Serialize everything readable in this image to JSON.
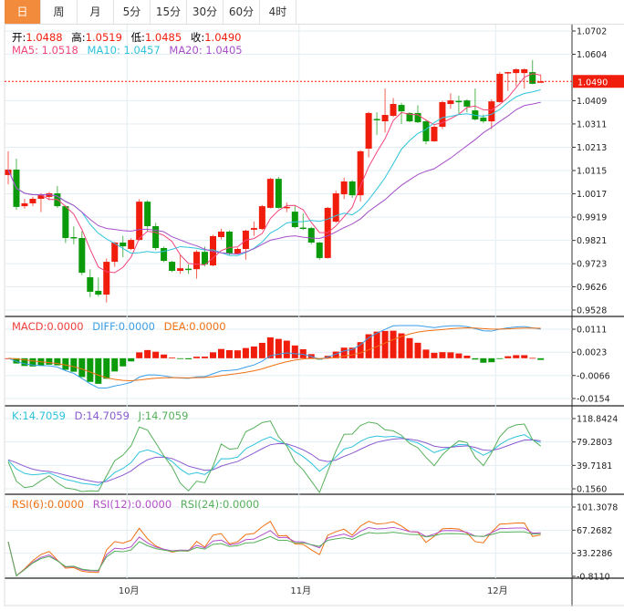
{
  "tabs": [
    "日",
    "周",
    "月",
    "5分",
    "15分",
    "30分",
    "60分",
    "4时"
  ],
  "active_tab": 0,
  "ohlc_legend": {
    "open_label": "开:",
    "open": "1.0488",
    "high_label": "高:",
    "high": "1.0519",
    "low_label": "低:",
    "low": "1.0485",
    "close_label": "收:",
    "close": "1.0490"
  },
  "ma_legend": {
    "ma5": "MA5: 1.0518",
    "ma10": "MA10: 1.0457",
    "ma20": "MA20: 1.0405"
  },
  "macd_legend": {
    "macd": "MACD:0.0000",
    "diff": "DIFF:0.0000",
    "dea": "DEA:0.0000"
  },
  "kdj_legend": {
    "k": "K:14.7059",
    "d": "D:14.7059",
    "j": "J:14.7059"
  },
  "rsi_legend": {
    "rsi6": "RSI(6):0.0000",
    "rsi12": "RSI(12):0.0000",
    "rsi24": "RSI(24):0.0000"
  },
  "last_price_badge": "1.0490",
  "colors": {
    "up": "#f01c0c",
    "down": "#0a9a0a",
    "ma5": "#f2457a",
    "ma10": "#2fc3dc",
    "ma20": "#a64fc9",
    "diff": "#3a9ee8",
    "dea": "#f07013",
    "rsi6": "#f07013",
    "rsi12": "#b44fc9",
    "rsi24": "#55b05a",
    "k": "#2fc3dc",
    "d": "#8a5bd0",
    "j": "#55b05a"
  },
  "chart_data": {
    "type": "candlestick",
    "price_axis": {
      "ticks": [
        "1.0702",
        "1.0604",
        "1.0409",
        "1.0311",
        "1.0213",
        "1.0115",
        "1.0017",
        "0.9919",
        "0.9821",
        "0.9723",
        "0.9626",
        "0.9528"
      ],
      "range": [
        0.9528,
        1.0702
      ]
    },
    "macd_axis": {
      "ticks": [
        "0.0111",
        "0.0023",
        "-0.0066",
        "-0.0154"
      ],
      "range": [
        -0.0154,
        0.0111
      ]
    },
    "kdj_axis": {
      "ticks": [
        "118.8424",
        "79.2803",
        "39.7181",
        "0.1560"
      ],
      "range": [
        0.156,
        118.8424
      ]
    },
    "rsi_axis": {
      "ticks": [
        "101.3078",
        "67.2682",
        "33.2286",
        "-0.8110"
      ],
      "range": [
        -0.811,
        101.3078
      ]
    },
    "x_labels": [
      {
        "label": "10月",
        "index": 15
      },
      {
        "label": "11月",
        "index": 36
      },
      {
        "label": "12月",
        "index": 60
      }
    ],
    "candles": [
      [
        1.0096,
        1.0196,
        1.0057,
        1.0119
      ],
      [
        1.0119,
        1.0165,
        0.995,
        0.9962
      ],
      [
        0.9965,
        0.9996,
        0.9955,
        0.9977
      ],
      [
        0.9977,
        1.0005,
        0.9965,
        0.9996
      ],
      [
        0.9996,
        1.002,
        0.994,
        1.0011
      ],
      [
        1.0004,
        1.0025,
        0.999,
        1.0019
      ],
      [
        1.0019,
        1.005,
        0.9958,
        0.9965
      ],
      [
        0.9965,
        0.9968,
        0.981,
        0.9831
      ],
      [
        0.9835,
        0.988,
        0.9805,
        0.9833
      ],
      [
        0.9831,
        0.986,
        0.9675,
        0.9685
      ],
      [
        0.9666,
        0.97,
        0.9582,
        0.9605
      ],
      [
        0.9609,
        0.9665,
        0.9585,
        0.9593
      ],
      [
        0.9593,
        0.9745,
        0.956,
        0.9731
      ],
      [
        0.9731,
        0.9815,
        0.971,
        0.9812
      ],
      [
        0.9812,
        0.984,
        0.975,
        0.9796
      ],
      [
        0.9785,
        0.983,
        0.978,
        0.9823
      ],
      [
        0.9823,
        0.9995,
        0.982,
        0.9984
      ],
      [
        0.9984,
        0.999,
        0.986,
        0.9881
      ],
      [
        0.9881,
        0.9895,
        0.978,
        0.9789
      ],
      [
        0.9789,
        0.9795,
        0.973,
        0.9735
      ],
      [
        0.9731,
        0.9735,
        0.9688,
        0.9693
      ],
      [
        0.9693,
        0.976,
        0.968,
        0.9704
      ],
      [
        0.9702,
        0.972,
        0.968,
        0.97
      ],
      [
        0.97,
        0.978,
        0.966,
        0.9773
      ],
      [
        0.9773,
        0.9795,
        0.9712,
        0.972
      ],
      [
        0.9716,
        0.9845,
        0.9712,
        0.9839
      ],
      [
        0.9835,
        0.987,
        0.9825,
        0.9858
      ],
      [
        0.9858,
        0.9863,
        0.976,
        0.9766
      ],
      [
        0.9766,
        0.979,
        0.9763,
        0.9785
      ],
      [
        0.9785,
        0.9866,
        0.974,
        0.9862
      ],
      [
        0.9866,
        0.99,
        0.984,
        0.9873
      ],
      [
        0.9869,
        0.997,
        0.9865,
        0.9965
      ],
      [
        0.9958,
        1.0085,
        0.9955,
        1.008
      ],
      [
        1.008,
        1.0088,
        0.9955,
        0.9958
      ],
      [
        0.996,
        0.998,
        0.994,
        0.9962
      ],
      [
        0.9942,
        0.9965,
        0.9872,
        0.9877
      ],
      [
        0.9875,
        0.9935,
        0.9865,
        0.9873
      ],
      [
        0.9873,
        0.9878,
        0.9805,
        0.9812
      ],
      [
        0.9812,
        0.9815,
        0.974,
        0.9747
      ],
      [
        0.9747,
        0.9962,
        0.9745,
        0.9958
      ],
      [
        0.99,
        1.003,
        0.9895,
        1.0019
      ],
      [
        1.0015,
        1.0085,
        0.9995,
        1.0069
      ],
      [
        1.0069,
        1.0075,
        1.0,
        1.0011
      ],
      [
        1.0011,
        1.02,
        0.9985,
        1.0196
      ],
      [
        1.0207,
        1.0362,
        1.017,
        1.0357
      ],
      [
        1.0332,
        1.036,
        1.0265,
        1.033
      ],
      [
        1.0322,
        1.046,
        1.0275,
        1.0349
      ],
      [
        1.0345,
        1.042,
        1.034,
        1.0395
      ],
      [
        1.0391,
        1.04,
        1.031,
        1.0364
      ],
      [
        1.0357,
        1.036,
        1.0318,
        1.0322
      ],
      [
        1.0357,
        1.039,
        1.0315,
        1.0318
      ],
      [
        1.0322,
        1.033,
        1.0225,
        1.0238
      ],
      [
        1.0238,
        1.0305,
        1.0236,
        1.0299
      ],
      [
        1.0299,
        1.0408,
        1.029,
        1.0403
      ],
      [
        1.0395,
        1.044,
        1.0375,
        1.041
      ],
      [
        1.0408,
        1.043,
        1.0355,
        1.0406
      ],
      [
        1.041,
        1.0415,
        1.036,
        1.0384
      ],
      [
        1.0368,
        1.046,
        1.0325,
        1.033
      ],
      [
        1.0338,
        1.035,
        1.0315,
        1.0322
      ],
      [
        1.0322,
        1.0415,
        1.029,
        1.0406
      ],
      [
        1.0403,
        1.053,
        1.04,
        1.0522
      ],
      [
        1.0525,
        1.053,
        1.045,
        1.0529
      ],
      [
        1.0525,
        1.0545,
        1.047,
        1.0541
      ],
      [
        1.0525,
        1.0545,
        1.046,
        1.0541
      ],
      [
        1.0529,
        1.058,
        1.0478,
        1.048
      ],
      [
        1.0488,
        1.0519,
        1.0485,
        1.049
      ]
    ]
  }
}
